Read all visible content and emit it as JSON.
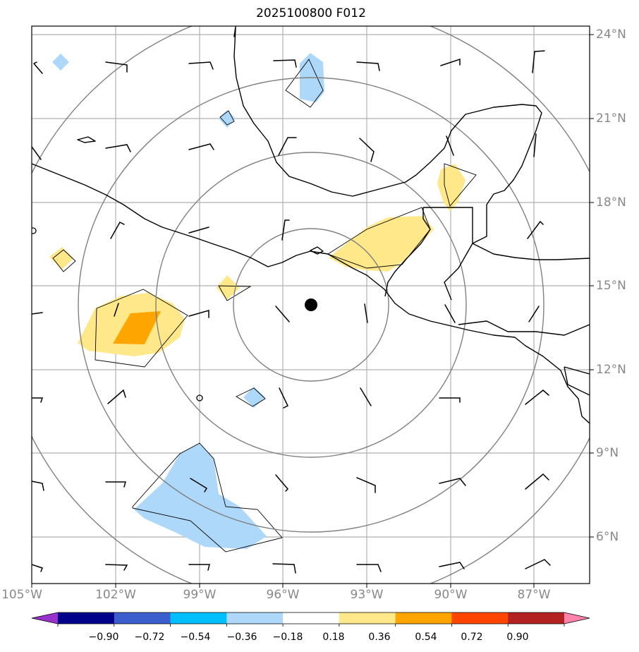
{
  "title": "2025100800 F012",
  "lon_labels": [
    "105°W",
    "102°W",
    "99°W",
    "96°W",
    "93°W",
    "90°W",
    "87°W"
  ],
  "lat_labels": [
    "24°N",
    "21°N",
    "18°N",
    "15°N",
    "12°N",
    "9°N",
    "6°N"
  ],
  "colorbar": {
    "ticks": [
      "−0.90",
      "−0.72",
      "−0.54",
      "−0.36",
      "−0.18",
      "0.18",
      "0.36",
      "0.54",
      "0.72",
      "0.90"
    ],
    "colors": [
      "#9932cc",
      "#00008b",
      "#3a5fcd",
      "#00bfff",
      "#add8f9",
      "#ffffff",
      "#ffe88a",
      "#ffa500",
      "#ff4500",
      "#b22222",
      "#ff82ab"
    ]
  },
  "map": {
    "extent": {
      "lon_min": -105,
      "lon_max": -85,
      "lat_min": 4.3,
      "lat_max": 24.3
    },
    "storm_center": {
      "lon": -95,
      "lat": 14.3
    },
    "range_ring_count": 4,
    "colors": {
      "gridline": "#b0b0b0",
      "range_ring": "#808080",
      "coast": "#000000",
      "positive_fill": "#ffe88a",
      "strong_positive_fill": "#ffa500",
      "negative_fill": "#add8f9"
    }
  }
}
